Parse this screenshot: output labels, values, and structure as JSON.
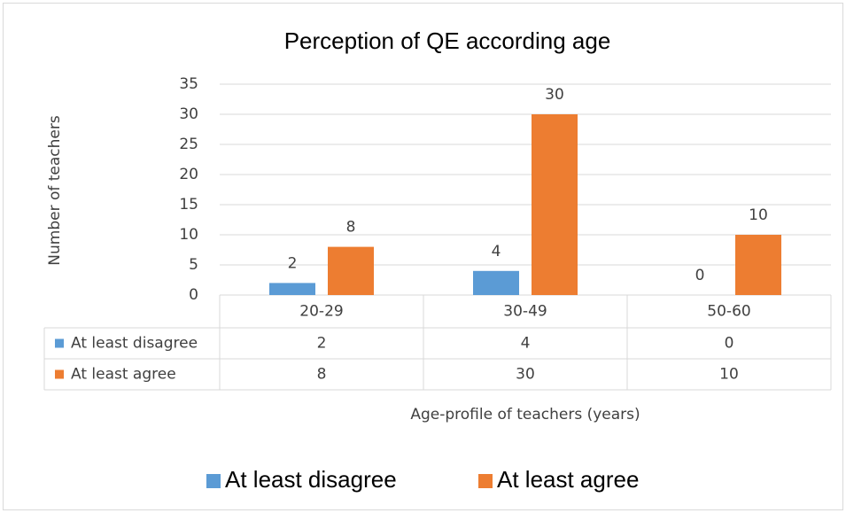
{
  "chart_data": {
    "type": "bar",
    "title": "Perception of QE according age",
    "y_label": "Number of teachers",
    "x_label": "Age-profile of teachers (years)",
    "categories": [
      "20-29",
      "30-49",
      "50-60"
    ],
    "series": [
      {
        "name": "At least disagree",
        "color": "#5b9bd5",
        "values": [
          2,
          4,
          0
        ]
      },
      {
        "name": "At least agree",
        "color": "#ed7d31",
        "values": [
          8,
          30,
          10
        ]
      }
    ],
    "ylim": [
      0,
      35
    ],
    "yticks": [
      0,
      5,
      10,
      15,
      20,
      25,
      30,
      35
    ],
    "grid": true,
    "data_table": true,
    "legend": "bottom"
  }
}
